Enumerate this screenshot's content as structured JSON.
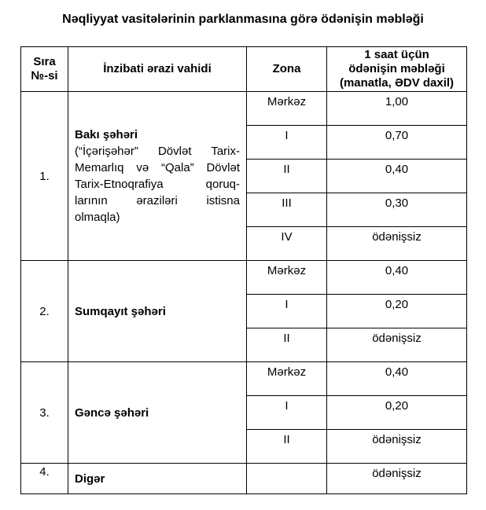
{
  "title": "Nəqliyyat vasitələrinin parklanmasına görə ödənişin məbləği",
  "table": {
    "headers": [
      "Sıra\n№-si",
      "İnzibati ərazi vahidi",
      "Zona",
      "1 saat üçün\nödənişin məbləği\n(manatla, ƏDV daxil)"
    ],
    "rows": [
      {
        "no": "1.",
        "unit": "Bakı şəhəri",
        "note_lines": [
          "(“İçərişəhər” Dövlət Tarix-",
          "Memarlıq və “Qala” Dövlət",
          "Tarix-Etnoqrafiya qoruq-",
          "larının əraziləri istisna",
          "olmaqla)"
        ],
        "zones": [
          {
            "zone": "Mərkəz",
            "fee": "1,00"
          },
          {
            "zone": "I",
            "fee": "0,70"
          },
          {
            "zone": "II",
            "fee": "0,40"
          },
          {
            "zone": "III",
            "fee": "0,30"
          },
          {
            "zone": "IV",
            "fee": "ödənişsiz"
          }
        ]
      },
      {
        "no": "2.",
        "unit": "Sumqayıt şəhəri",
        "note_lines": [],
        "zones": [
          {
            "zone": "Mərkəz",
            "fee": "0,40"
          },
          {
            "zone": "I",
            "fee": "0,20"
          },
          {
            "zone": "II",
            "fee": "ödənişsiz"
          }
        ]
      },
      {
        "no": "3.",
        "unit": "Gəncə şəhəri",
        "note_lines": [],
        "zones": [
          {
            "zone": "Mərkəz",
            "fee": "0,40"
          },
          {
            "zone": "I",
            "fee": "0,20"
          },
          {
            "zone": "II",
            "fee": "ödənişsiz"
          }
        ]
      },
      {
        "no": "4.",
        "unit": "Digər",
        "note_lines": [],
        "zones": [
          {
            "zone": "",
            "fee": "ödənişsiz"
          }
        ]
      }
    ]
  }
}
